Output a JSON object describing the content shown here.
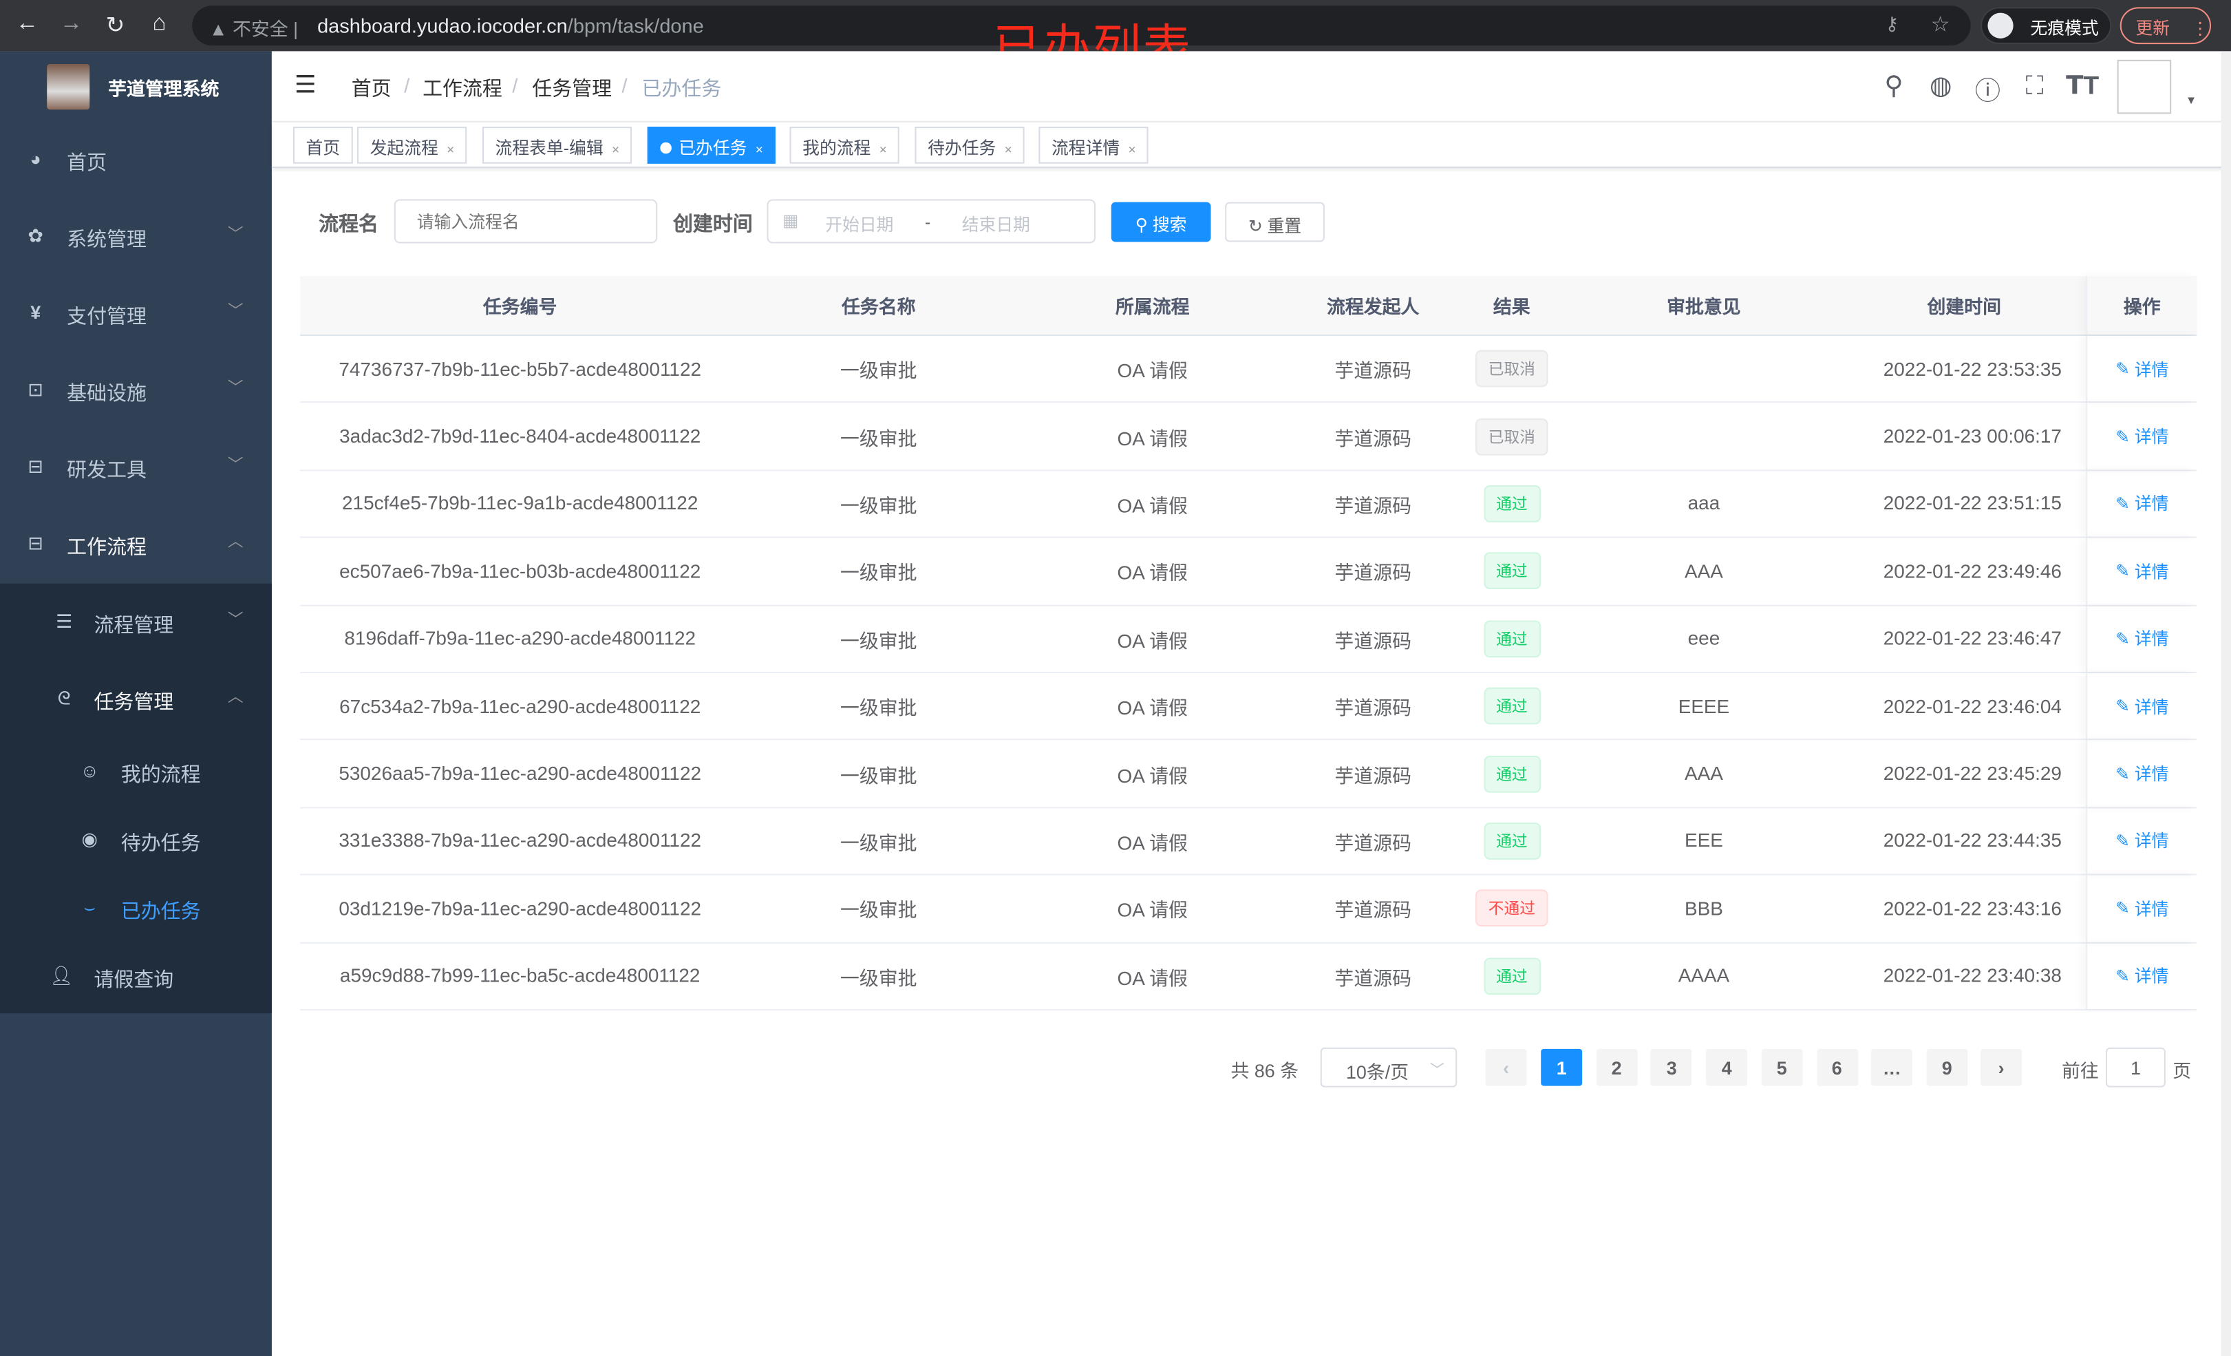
{
  "browser": {
    "security": "不安全",
    "url_host": "dashboard.yudao.iocoder.cn",
    "url_path": "/bpm/task/done",
    "incognito": "无痕模式",
    "update": "更新",
    "more": "⋮"
  },
  "annotation": "已办列表",
  "sidebar": {
    "title": "芋道管理系统",
    "items": [
      {
        "label": "首页",
        "icon": "dashboard-icon"
      },
      {
        "label": "系统管理",
        "icon": "gear-icon"
      },
      {
        "label": "支付管理",
        "icon": "yen-icon"
      },
      {
        "label": "基础设施",
        "icon": "monitor-icon"
      },
      {
        "label": "研发工具",
        "icon": "toolbox-icon"
      },
      {
        "label": "工作流程",
        "icon": "toolbox-icon"
      }
    ],
    "sub": [
      {
        "label": "流程管理"
      },
      {
        "label": "任务管理"
      }
    ],
    "leaf": [
      {
        "label": "我的流程"
      },
      {
        "label": "待办任务"
      },
      {
        "label": "已办任务"
      }
    ],
    "extra": {
      "label": "请假查询"
    }
  },
  "breadcrumb": [
    "首页",
    "工作流程",
    "任务管理",
    "已办任务"
  ],
  "breadcrumb_sep": "/",
  "tags": [
    {
      "label": "首页"
    },
    {
      "label": "发起流程"
    },
    {
      "label": "流程表单-编辑"
    },
    {
      "label": "已办任务",
      "active": true
    },
    {
      "label": "我的流程"
    },
    {
      "label": "待办任务"
    },
    {
      "label": "流程详情"
    }
  ],
  "tag_close": "×",
  "search": {
    "name_label": "流程名",
    "name_placeholder": "请输入流程名",
    "time_label": "创建时间",
    "start_placeholder": "开始日期",
    "range_sep": "-",
    "end_placeholder": "结束日期",
    "search_btn": "搜索",
    "reset_btn": "重置"
  },
  "table": {
    "columns": [
      "任务编号",
      "任务名称",
      "所属流程",
      "流程发起人",
      "结果",
      "审批意见",
      "创建时间",
      "操作"
    ],
    "action": "详情",
    "rows": [
      {
        "id": "74736737-7b9b-11ec-b5b7-acde48001122",
        "name": "一级审批",
        "process": "OA 请假",
        "starter": "芋道源码",
        "result": "已取消",
        "status": "info",
        "comment": "",
        "time": "2022-01-22 23:53:35"
      },
      {
        "id": "3adac3d2-7b9d-11ec-8404-acde48001122",
        "name": "一级审批",
        "process": "OA 请假",
        "starter": "芋道源码",
        "result": "已取消",
        "status": "info",
        "comment": "",
        "time": "2022-01-23 00:06:17"
      },
      {
        "id": "215cf4e5-7b9b-11ec-9a1b-acde48001122",
        "name": "一级审批",
        "process": "OA 请假",
        "starter": "芋道源码",
        "result": "通过",
        "status": "success",
        "comment": "aaa",
        "time": "2022-01-22 23:51:15"
      },
      {
        "id": "ec507ae6-7b9a-11ec-b03b-acde48001122",
        "name": "一级审批",
        "process": "OA 请假",
        "starter": "芋道源码",
        "result": "通过",
        "status": "success",
        "comment": "AAA",
        "time": "2022-01-22 23:49:46"
      },
      {
        "id": "8196daff-7b9a-11ec-a290-acde48001122",
        "name": "一级审批",
        "process": "OA 请假",
        "starter": "芋道源码",
        "result": "通过",
        "status": "success",
        "comment": "eee",
        "time": "2022-01-22 23:46:47"
      },
      {
        "id": "67c534a2-7b9a-11ec-a290-acde48001122",
        "name": "一级审批",
        "process": "OA 请假",
        "starter": "芋道源码",
        "result": "通过",
        "status": "success",
        "comment": "EEEE",
        "time": "2022-01-22 23:46:04"
      },
      {
        "id": "53026aa5-7b9a-11ec-a290-acde48001122",
        "name": "一级审批",
        "process": "OA 请假",
        "starter": "芋道源码",
        "result": "通过",
        "status": "success",
        "comment": "AAA",
        "time": "2022-01-22 23:45:29"
      },
      {
        "id": "331e3388-7b9a-11ec-a290-acde48001122",
        "name": "一级审批",
        "process": "OA 请假",
        "starter": "芋道源码",
        "result": "通过",
        "status": "success",
        "comment": "EEE",
        "time": "2022-01-22 23:44:35"
      },
      {
        "id": "03d1219e-7b9a-11ec-a290-acde48001122",
        "name": "一级审批",
        "process": "OA 请假",
        "starter": "芋道源码",
        "result": "不通过",
        "status": "danger",
        "comment": "BBB",
        "time": "2022-01-22 23:43:16"
      },
      {
        "id": "a59c9d88-7b99-11ec-ba5c-acde48001122",
        "name": "一级审批",
        "process": "OA 请假",
        "starter": "芋道源码",
        "result": "通过",
        "status": "success",
        "comment": "AAAA",
        "time": "2022-01-22 23:40:38"
      }
    ]
  },
  "pagination": {
    "total": "共 86 条",
    "page_size": "10条/页",
    "pages": [
      "1",
      "2",
      "3",
      "4",
      "5",
      "6",
      "…",
      "9"
    ],
    "current": "1",
    "goto_label": "前往",
    "goto_value": "1",
    "page_unit": "页",
    "prev": "‹",
    "next": "›"
  },
  "colors": {
    "primary": "#1890ff",
    "sidebar": "#304156",
    "submenu": "#1f2d3d",
    "success": "#13ce66",
    "danger": "#ff4949",
    "info": "#909399",
    "annotation": "#f52a1a"
  }
}
